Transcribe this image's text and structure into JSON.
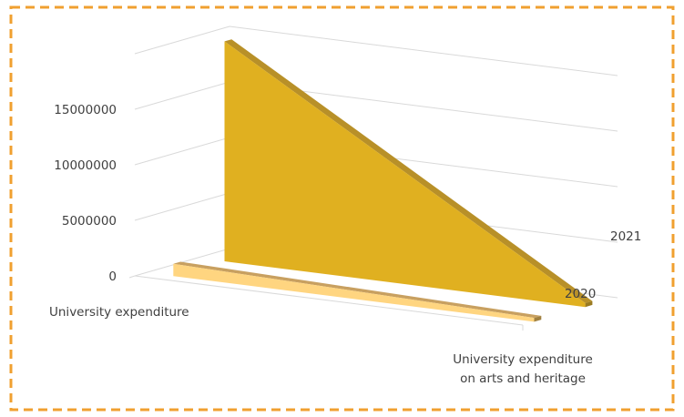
{
  "chart_data": {
    "type": "area",
    "view": "3d",
    "categories": [
      "University expenditure",
      "University expenditure on arts and heritage"
    ],
    "series": [
      {
        "name": "2020",
        "values": [
          1100000,
          0
        ],
        "color": "#FFD580",
        "top_color": "#C8A060",
        "side_color": "#A08040"
      },
      {
        "name": "2021",
        "values": [
          19800000,
          0
        ],
        "color": "#E0B020",
        "top_color": "#B89028",
        "side_color": "#9A7A20"
      }
    ],
    "y_ticks": [
      "0",
      "5000000",
      "10000000",
      "15000000"
    ],
    "ylim": [
      0,
      20000000
    ],
    "grid": true,
    "frame_color": "#F0A030",
    "frame_style": "dashed",
    "title": "",
    "xlabel": "",
    "ylabel": ""
  }
}
